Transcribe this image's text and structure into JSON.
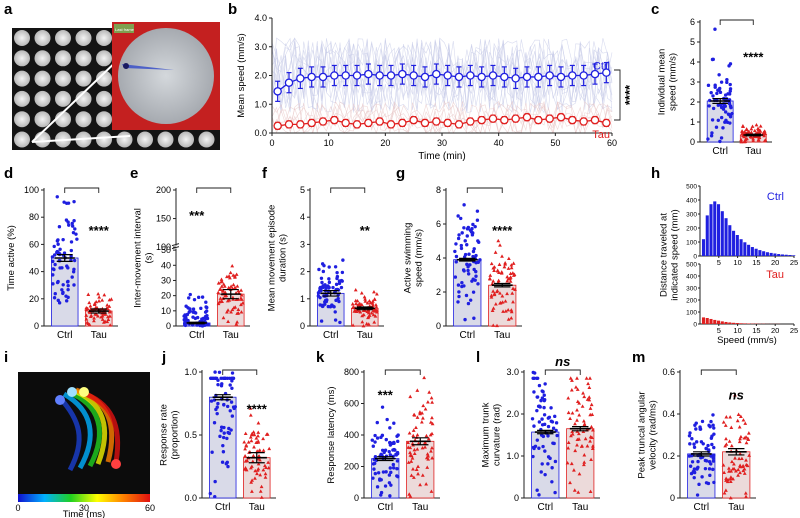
{
  "panel_letters": [
    "a",
    "b",
    "c",
    "d",
    "e",
    "f",
    "g",
    "h",
    "i",
    "j",
    "k",
    "l",
    "m"
  ],
  "colors": {
    "ctrl": "#1f1fe0",
    "tau": "#e02020",
    "ctrl_fill": "#d9dae8",
    "tau_fill": "#ecdada",
    "axis": "#222222"
  },
  "panel_a": {
    "inset_label": "Last frame"
  },
  "panel_i": {
    "cbar_ticks": [
      "0",
      "30",
      "60"
    ],
    "cbar_label": "Time (ms)"
  },
  "chart_data": [
    {
      "id": "b",
      "type": "line",
      "xlabel": "Time (min)",
      "ylabel": "Mean speed (mm/s)",
      "xlim": [
        0,
        60
      ],
      "ylim": [
        0,
        4
      ],
      "xticks": [
        0,
        10,
        20,
        30,
        40,
        50,
        60
      ],
      "yticks": [
        0.0,
        1.0,
        2.0,
        3.0,
        4.0
      ],
      "ytick_labels": [
        "0.0",
        "1.0",
        "2.0",
        "3.0",
        "4.0"
      ],
      "x": [
        1,
        3,
        5,
        7,
        9,
        11,
        13,
        15,
        17,
        19,
        21,
        23,
        25,
        27,
        29,
        31,
        33,
        35,
        37,
        39,
        41,
        43,
        45,
        47,
        49,
        51,
        53,
        55,
        57,
        59
      ],
      "series": [
        {
          "name": "Ctrl",
          "values": [
            1.45,
            1.75,
            1.9,
            1.95,
            1.95,
            2.0,
            2.0,
            2.0,
            2.05,
            2.0,
            2.0,
            2.05,
            2.0,
            1.95,
            2.05,
            2.0,
            1.95,
            2.0,
            1.95,
            2.0,
            1.95,
            1.9,
            1.95,
            1.95,
            2.0,
            1.95,
            2.0,
            2.0,
            2.05,
            2.1
          ],
          "err": 0.35
        },
        {
          "name": "Tau",
          "values": [
            0.25,
            0.3,
            0.3,
            0.35,
            0.4,
            0.45,
            0.35,
            0.3,
            0.35,
            0.4,
            0.3,
            0.35,
            0.45,
            0.35,
            0.4,
            0.35,
            0.3,
            0.4,
            0.45,
            0.5,
            0.45,
            0.5,
            0.55,
            0.45,
            0.5,
            0.55,
            0.45,
            0.4,
            0.45,
            0.35
          ],
          "err": 0.12
        }
      ],
      "significance": "****"
    },
    {
      "id": "c",
      "type": "bar",
      "ylabel": "Individual mean speed (mm/s)",
      "categories": [
        "Ctrl",
        "Tau"
      ],
      "values": [
        2.05,
        0.35
      ],
      "sem": [
        0.12,
        0.04
      ],
      "ylim": [
        0,
        6
      ],
      "yticks": [
        0,
        1,
        2,
        3,
        4,
        5,
        6
      ],
      "ytick_labels": [
        "0",
        "1",
        "2",
        "3",
        "4",
        "5",
        "6"
      ],
      "significance": "****"
    },
    {
      "id": "d",
      "type": "bar",
      "ylabel": "Time active (%)",
      "categories": [
        "Ctrl",
        "Tau"
      ],
      "values": [
        50,
        11
      ],
      "sem": [
        2.5,
        1.5
      ],
      "ylim": [
        0,
        100
      ],
      "yticks": [
        0,
        20,
        40,
        60,
        80,
        100
      ],
      "ytick_labels": [
        "0",
        "20",
        "40",
        "60",
        "80",
        "100"
      ],
      "significance": "****"
    },
    {
      "id": "e",
      "type": "bar",
      "ylabel": "Inter-movement interval (s)",
      "categories": [
        "Ctrl",
        "Tau"
      ],
      "values": [
        2,
        21
      ],
      "sem": [
        0.5,
        3
      ],
      "ylim": [
        0,
        200
      ],
      "yticks": [
        0,
        10,
        20,
        30,
        40,
        50,
        100,
        150,
        200
      ],
      "ytick_labels": [
        "0",
        "10",
        "20",
        "30",
        "40",
        "50",
        "100",
        "150",
        "200"
      ],
      "axis_break": [
        50,
        100
      ],
      "significance": "***"
    },
    {
      "id": "f",
      "type": "bar",
      "ylabel": "Mean movement episode duration (s)",
      "categories": [
        "Ctrl",
        "Tau"
      ],
      "values": [
        1.2,
        0.65
      ],
      "sem": [
        0.1,
        0.05
      ],
      "ylim": [
        0,
        5
      ],
      "yticks": [
        0,
        1,
        2,
        3,
        4,
        5
      ],
      "ytick_labels": [
        "0",
        "1",
        "2",
        "3",
        "4",
        "5"
      ],
      "significance": "**"
    },
    {
      "id": "g",
      "type": "bar",
      "ylabel": "Active swimming speed (mm/s)",
      "categories": [
        "Ctrl",
        "Tau"
      ],
      "values": [
        3.9,
        2.4
      ],
      "sem": [
        0.08,
        0.1
      ],
      "ylim": [
        0,
        8
      ],
      "yticks": [
        0,
        2,
        4,
        6,
        8
      ],
      "ytick_labels": [
        "0",
        "2",
        "4",
        "6",
        "8"
      ],
      "significance": "****"
    },
    {
      "id": "h",
      "type": "histogram",
      "ylabel": "Distance traveled at indicated speed (mm)",
      "xlabel": "Speed (mm/s)",
      "xticks": [
        5,
        10,
        15,
        20,
        25
      ],
      "ylim": [
        0,
        500
      ],
      "yticks": [
        0,
        100,
        200,
        300,
        400,
        500
      ],
      "ytick_labels": [
        "0",
        "100",
        "200",
        "300",
        "400",
        "500"
      ],
      "series": [
        {
          "name": "Ctrl",
          "x": [
            1,
            2,
            3,
            4,
            5,
            6,
            7,
            8,
            9,
            10,
            11,
            12,
            13,
            14,
            15,
            16,
            17,
            18,
            19,
            20,
            21,
            22,
            23,
            24,
            25
          ],
          "values": [
            120,
            290,
            370,
            390,
            370,
            320,
            270,
            220,
            180,
            150,
            120,
            98,
            80,
            64,
            52,
            42,
            34,
            27,
            22,
            18,
            14,
            11,
            9,
            7,
            5
          ]
        },
        {
          "name": "Tau",
          "x": [
            1,
            2,
            3,
            4,
            5,
            6,
            7,
            8,
            9,
            10,
            11,
            12,
            13,
            14,
            15,
            16,
            17,
            18,
            19,
            20,
            21,
            22,
            23,
            24,
            25
          ],
          "values": [
            55,
            50,
            42,
            34,
            28,
            22,
            17,
            13,
            10,
            8,
            6,
            5,
            4,
            3,
            3,
            2,
            2,
            1,
            1,
            1,
            1,
            0,
            0,
            0,
            0
          ]
        }
      ]
    },
    {
      "id": "j",
      "type": "bar",
      "ylabel": "Response rate (proportion)",
      "categories": [
        "Ctrl",
        "Tau"
      ],
      "values": [
        0.8,
        0.32
      ],
      "sem": [
        0.02,
        0.04
      ],
      "ylim": [
        0,
        1
      ],
      "yticks": [
        0,
        0.5,
        1
      ],
      "ytick_labels": [
        "0.0",
        "0.5",
        "1.0"
      ],
      "significance": "****"
    },
    {
      "id": "k",
      "type": "bar",
      "ylabel": "Response latency (ms)",
      "categories": [
        "Ctrl",
        "Tau"
      ],
      "values": [
        250,
        360
      ],
      "sem": [
        12,
        22
      ],
      "ylim": [
        0,
        800
      ],
      "yticks": [
        0,
        200,
        400,
        600,
        800
      ],
      "ytick_labels": [
        "0",
        "200",
        "400",
        "600",
        "800"
      ],
      "significance": "***"
    },
    {
      "id": "l",
      "type": "bar",
      "ylabel": "Maximum trunk curvature (rad)",
      "categories": [
        "Ctrl",
        "Tau"
      ],
      "values": [
        1.57,
        1.65
      ],
      "sem": [
        0.04,
        0.05
      ],
      "ylim": [
        0,
        3
      ],
      "yticks": [
        0,
        1,
        2,
        3
      ],
      "ytick_labels": [
        "0",
        "1.0",
        "2.0",
        "3.0"
      ],
      "significance": "ns"
    },
    {
      "id": "m",
      "type": "bar",
      "ylabel": "Peak truncal angular velocity (rad/ms)",
      "categories": [
        "Ctrl",
        "Tau"
      ],
      "values": [
        0.21,
        0.22
      ],
      "sem": [
        0.01,
        0.015
      ],
      "ylim": [
        0,
        0.6
      ],
      "yticks": [
        0,
        0.2,
        0.4,
        0.6
      ],
      "ytick_labels": [
        "0",
        "0.2",
        "0.4",
        "0.6"
      ],
      "significance": "ns"
    }
  ]
}
